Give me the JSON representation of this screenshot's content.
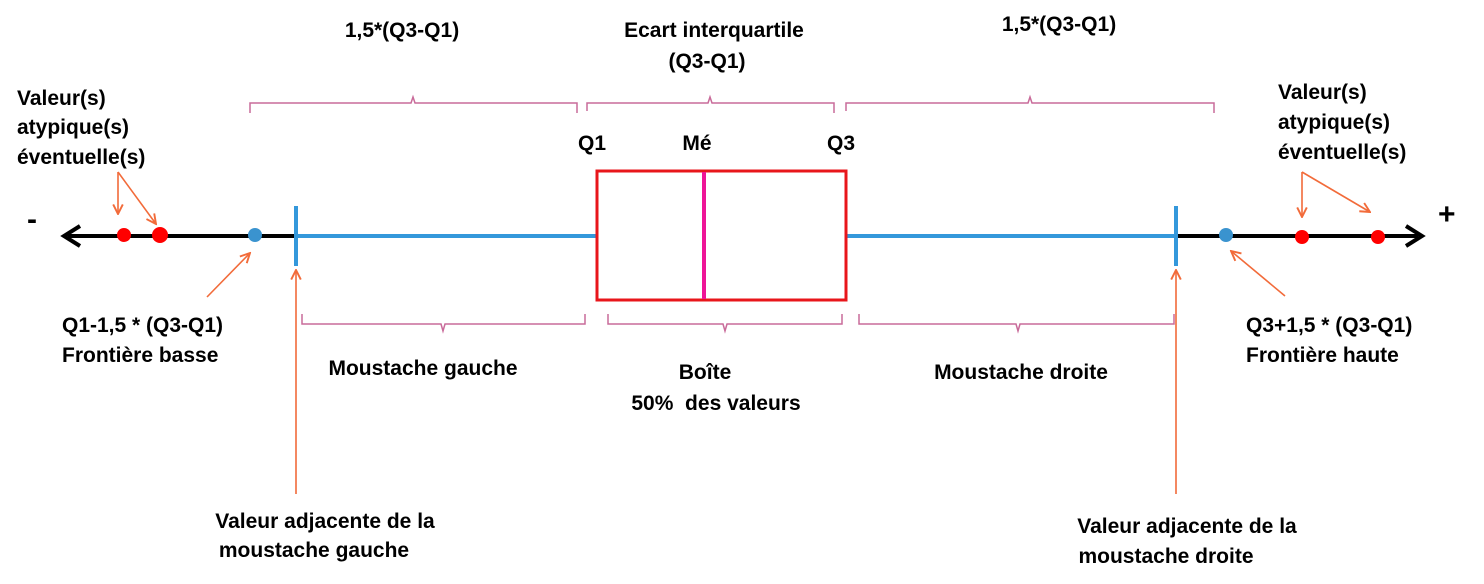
{
  "labels": {
    "minus": "-",
    "plus": "+",
    "range_left": "1,5*(Q3-Q1)",
    "range_right": "1,5*(Q3-Q1)",
    "iqr_line1": "Ecart interquartile",
    "iqr_line2": "(Q3-Q1)",
    "q1": "Q1",
    "median": "Mé",
    "q3": "Q3",
    "outliers_left": [
      "Valeur(s)",
      "atypique(s)",
      "éventuelle(s)"
    ],
    "outliers_right": [
      "Valeur(s)",
      "atypique(s)",
      "éventuelle(s)"
    ],
    "lower_fence": [
      "Q1-1,5 * (Q3-Q1)",
      "Frontière basse"
    ],
    "upper_fence": [
      "Q3+1,5 * (Q3-Q1)",
      "Frontière haute"
    ],
    "left_whisker": "Moustache gauche",
    "box_line1": "Boîte",
    "box_line2": "50%  des valeurs",
    "right_whisker": "Moustache droite",
    "left_adjacent": [
      "Valeur adjacente de la",
      "moustache gauche"
    ],
    "right_adjacent": [
      "Valeur adjacente de la",
      "moustache droite"
    ]
  },
  "colors": {
    "axis": "#000000",
    "whisker": "#3498db",
    "box": "#e8161b",
    "median": "#ee1597",
    "outlier": "#ff0000",
    "fence_point": "#3a93cf",
    "arrow": "#f26b3a",
    "brace": "#c96b9a"
  }
}
